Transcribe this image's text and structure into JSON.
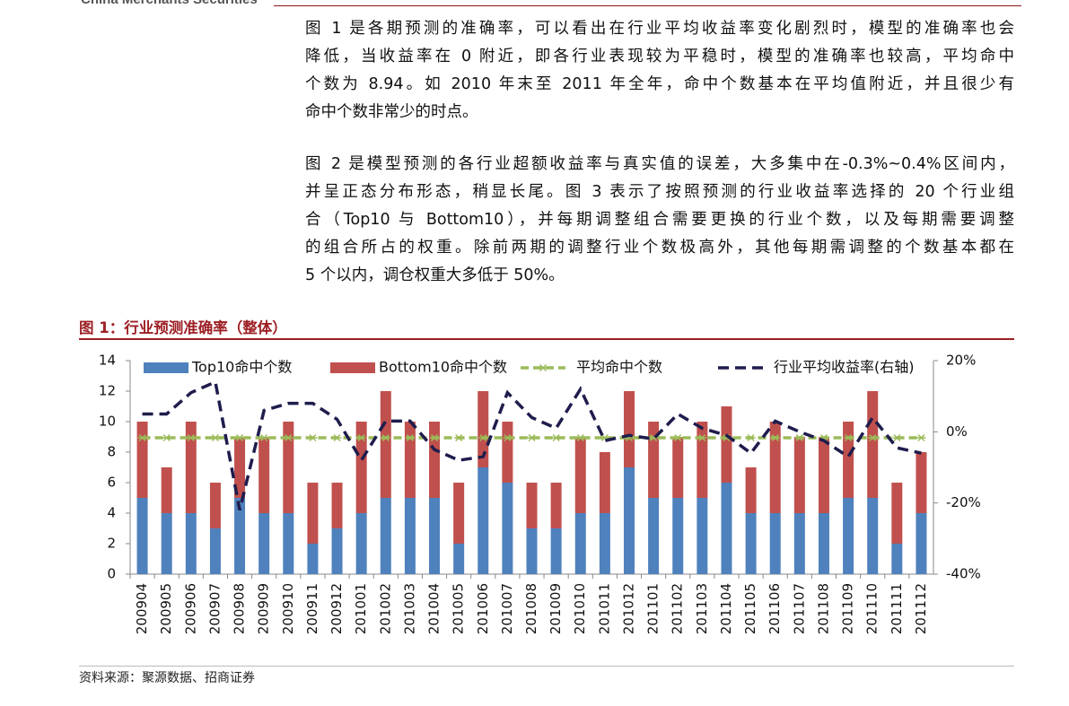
{
  "header": {
    "brand": "China Merchants Securities"
  },
  "paragraphs": [
    [
      "图 1 是各期预测的准确率，可以看出在行业平均收益率变化剧烈时，模型的准确率也会",
      "降低，当收益率在 0 附近，即各行业表现较为平稳时，模型的准确率也较高，平均命中",
      "个数为 8.94。如 2010 年末至 2011 年全年，命中个数基本在平均值附近，并且很少有",
      "命中个数非常少的时点。"
    ],
    [
      "图 2 是模型预测的各行业超额收益率与真实值的误差，大多集中在-0.3%~0.4%区间内，",
      "并呈正态分布形态，稍显长尾。图 3 表示了按照预测的行业收益率选择的 20 个行业组",
      "合（Top10 与 Bottom10），并每期调整组合需要更换的行业个数，以及每期需要调整",
      "的组合所占的权重。除前两期的调整行业个数极高外，其他每期需调整的个数基本都在",
      "5 个以内，调仓权重大多低于 50%。"
    ]
  ],
  "figure": {
    "title": "图 1：行业预测准确率（整体）",
    "source": "资料来源：聚源数据、招商证券"
  },
  "chart_data": {
    "type": "combo",
    "stacked": true,
    "categories": [
      "200904",
      "200905",
      "200906",
      "200907",
      "200908",
      "200909",
      "200910",
      "200911",
      "200912",
      "201001",
      "201002",
      "201003",
      "201004",
      "201005",
      "201006",
      "201007",
      "201008",
      "201009",
      "201010",
      "201011",
      "201012",
      "201101",
      "201102",
      "201103",
      "201104",
      "201105",
      "201106",
      "201107",
      "201108",
      "201109",
      "201110",
      "201111",
      "201112"
    ],
    "series": [
      {
        "name": "Top10命中个数",
        "type": "bar",
        "color": "#4f81bd",
        "values": [
          5,
          4,
          4,
          3,
          5,
          4,
          4,
          2,
          3,
          4,
          5,
          5,
          5,
          2,
          7,
          6,
          3,
          3,
          4,
          4,
          7,
          5,
          5,
          5,
          6,
          4,
          4,
          4,
          4,
          5,
          5,
          2,
          4
        ]
      },
      {
        "name": "Bottom10命中个数",
        "type": "bar",
        "color": "#c0504d",
        "values": [
          5,
          3,
          6,
          3,
          4,
          5,
          6,
          4,
          3,
          6,
          7,
          5,
          5,
          4,
          5,
          4,
          3,
          3,
          5,
          4,
          5,
          5,
          4,
          5,
          5,
          3,
          6,
          5,
          5,
          5,
          7,
          4,
          4
        ]
      },
      {
        "name": "平均命中个数",
        "type": "line",
        "color": "#9bbb59",
        "marker": "asterisk",
        "values": [
          8.94,
          8.94,
          8.94,
          8.94,
          8.94,
          8.94,
          8.94,
          8.94,
          8.94,
          8.94,
          8.94,
          8.94,
          8.94,
          8.94,
          8.94,
          8.94,
          8.94,
          8.94,
          8.94,
          8.94,
          8.94,
          8.94,
          8.94,
          8.94,
          8.94,
          8.94,
          8.94,
          8.94,
          8.94,
          8.94,
          8.94,
          8.94,
          8.94
        ]
      },
      {
        "name": "行业平均收益率(右轴)",
        "type": "line",
        "color": "#1f1d4d",
        "axis": "y2",
        "values": [
          5,
          5,
          11,
          14,
          -22,
          6,
          8,
          8,
          3.5,
          -8,
          3,
          3,
          -5,
          -8,
          -7,
          11,
          4,
          1,
          12,
          -2.5,
          -1,
          -2,
          5,
          1,
          -1,
          -6,
          3,
          0,
          -2.5,
          -7,
          4,
          -4.5,
          -6
        ]
      }
    ],
    "ylim": [
      0,
      14
    ],
    "yticks": [
      0,
      2,
      4,
      6,
      8,
      10,
      12,
      14
    ],
    "y2lim": [
      -40,
      20
    ],
    "y2ticks": [
      {
        "value": -40,
        "label": "-40%"
      },
      {
        "value": -20,
        "label": "-20%"
      },
      {
        "value": 0,
        "label": "0%"
      },
      {
        "value": 20,
        "label": "20%"
      }
    ],
    "legend": "top"
  }
}
